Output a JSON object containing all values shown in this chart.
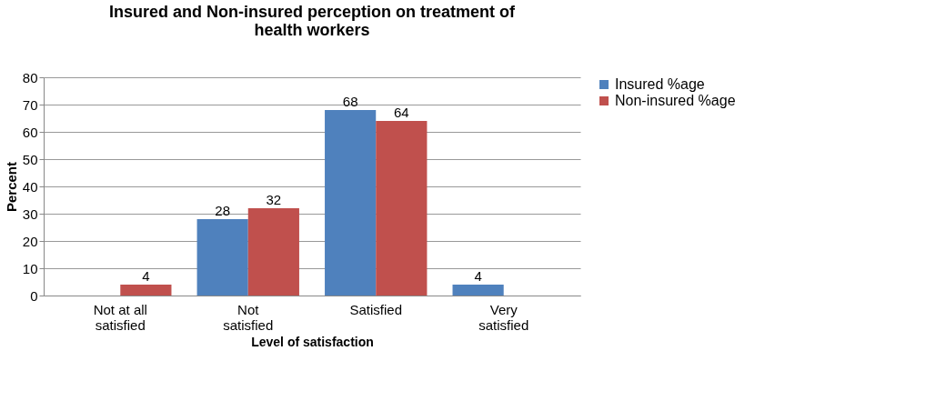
{
  "chart_data": {
    "type": "bar",
    "title": "Insured and Non-insured perception on treatment of health workers",
    "xlabel": "Level of satisfaction",
    "ylabel": "Percent",
    "categories": [
      "Not at all satisfied",
      "Not satisfied",
      "Satisfied",
      "Very satisfied"
    ],
    "series": [
      {
        "name": "Insured  %age",
        "color": "#4f81bd",
        "values": [
          0,
          28,
          68,
          4
        ],
        "value_labels": [
          null,
          "28",
          "68",
          "4"
        ]
      },
      {
        "name": "Non-insured %age",
        "color": "#c0504d",
        "values": [
          4,
          32,
          64,
          0
        ],
        "value_labels": [
          "4",
          "32",
          "64",
          null
        ]
      }
    ],
    "ylim": [
      0,
      80
    ],
    "yticks": [
      0,
      10,
      20,
      30,
      40,
      50,
      60,
      70,
      80
    ],
    "grid": "y",
    "legend": "right"
  }
}
